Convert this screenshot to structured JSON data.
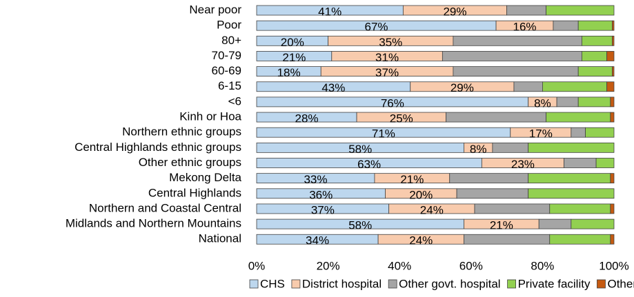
{
  "chart_data": {
    "type": "stacked-bar-horizontal",
    "categories": [
      "Near poor",
      "Poor",
      "80+",
      "70-79",
      "60-69",
      "6-15",
      "<6",
      "Kinh or Hoa",
      "Northern ethnic groups",
      "Central Highlands ethnic groups",
      "Other ethnic groups",
      "Mekong Delta",
      "Central Highlands",
      "Northern and Coastal Central",
      "Midlands and Northern Mountains",
      "National"
    ],
    "series": [
      {
        "name": "CHS",
        "color": "#bdd7ee",
        "values": [
          41,
          67,
          20,
          21,
          18,
          43,
          76,
          28,
          71,
          58,
          63,
          33,
          36,
          37,
          58,
          34
        ],
        "value_labels": [
          "41%",
          "67%",
          "20%",
          "21%",
          "18%",
          "43%",
          "76%",
          "28%",
          "71%",
          "58%",
          "63%",
          "33%",
          "36%",
          "37%",
          "58%",
          "34%"
        ]
      },
      {
        "name": "District hospital",
        "color": "#f8cbad",
        "values": [
          29,
          16,
          35,
          31,
          37,
          29,
          8,
          25,
          17,
          8,
          23,
          21,
          20,
          24,
          21,
          24
        ],
        "value_labels": [
          "29%",
          "16%",
          "35%",
          "31%",
          "37%",
          "29%",
          "8%",
          "25%",
          "17%",
          "8%",
          "23%",
          "21%",
          "20%",
          "24%",
          "21%",
          "24%"
        ]
      },
      {
        "name": "Other govt. hospital",
        "color": "#a5a5a5",
        "values": [
          11,
          7,
          36,
          39,
          35,
          8,
          6,
          28,
          4,
          10,
          9,
          22,
          20,
          21,
          9,
          24
        ]
      },
      {
        "name": "Private facility",
        "color": "#92d050",
        "values": [
          19,
          9.5,
          8.5,
          7,
          9.5,
          18,
          9,
          18,
          8,
          24,
          5,
          23,
          24,
          17,
          12,
          17
        ]
      },
      {
        "name": "Other facility",
        "color": "#c55a11",
        "values": [
          0,
          0.5,
          0.5,
          2,
          0.5,
          2,
          1,
          1,
          0,
          0,
          0,
          1,
          0,
          1,
          0,
          1
        ]
      }
    ],
    "xlim": [
      0,
      100
    ],
    "xticks": [
      {
        "value": 0,
        "label": "0%"
      },
      {
        "value": 20,
        "label": "20%"
      },
      {
        "value": 40,
        "label": "40%"
      },
      {
        "value": 60,
        "label": "60%"
      },
      {
        "value": 80,
        "label": "80%"
      },
      {
        "value": 100,
        "label": "100%"
      }
    ],
    "legend": "bottom"
  }
}
